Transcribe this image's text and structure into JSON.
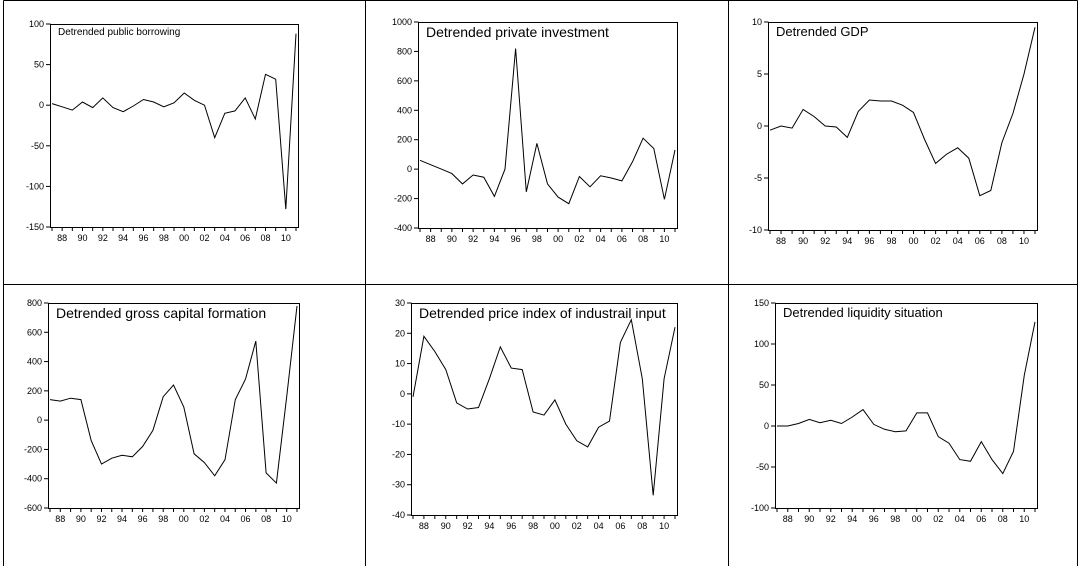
{
  "chart_data": [
    {
      "type": "line",
      "title": "Detrended public borrowing",
      "categories": [
        null,
        "88",
        null,
        "90",
        null,
        "92",
        null,
        "94",
        null,
        "96",
        null,
        "98",
        null,
        "00",
        null,
        "02",
        null,
        "04",
        null,
        "06",
        null,
        "08",
        null,
        "10",
        null
      ],
      "values": [
        2,
        -2,
        -6,
        4,
        -3,
        9,
        -3,
        -8,
        -1,
        7,
        4,
        -2,
        3,
        15,
        6,
        0,
        -40,
        -10,
        -7,
        9,
        -17,
        38,
        32,
        -128,
        88
      ],
      "color": "#000000",
      "ylim": [
        -150,
        100
      ],
      "yticks": [
        -150,
        -100,
        -50,
        0,
        50,
        100
      ]
    },
    {
      "type": "line",
      "title": "Detrended private investment",
      "categories": [
        null,
        "88",
        null,
        "90",
        null,
        "92",
        null,
        "94",
        null,
        "96",
        null,
        "98",
        null,
        "00",
        null,
        "02",
        null,
        "04",
        null,
        "06",
        null,
        "08",
        null,
        "10",
        null
      ],
      "values": [
        60,
        30,
        0,
        -30,
        -100,
        -40,
        -55,
        -185,
        0,
        820,
        -155,
        175,
        -100,
        -190,
        -235,
        -50,
        -120,
        -45,
        -60,
        -80,
        50,
        210,
        140,
        -205,
        130
      ],
      "color": "#000000",
      "ylim": [
        -400,
        1000
      ],
      "yticks": [
        -400,
        -200,
        0,
        200,
        400,
        600,
        800,
        1000
      ]
    },
    {
      "type": "line",
      "title": "Detrended GDP",
      "categories": [
        null,
        "88",
        null,
        "90",
        null,
        "92",
        null,
        "94",
        null,
        "96",
        null,
        "98",
        null,
        "00",
        null,
        "02",
        null,
        "04",
        null,
        "06",
        null,
        "08",
        null,
        "10",
        null
      ],
      "values": [
        -0.4,
        0,
        -0.2,
        1.6,
        0.9,
        0,
        -0.1,
        -1.1,
        1.4,
        2.5,
        2.4,
        2.4,
        2.0,
        1.3,
        -1.3,
        -3.6,
        -2.7,
        -2.1,
        -3.1,
        -6.7,
        -6.2,
        -1.6,
        1.2,
        5.0,
        9.5
      ],
      "color": "#000000",
      "ylim": [
        -10,
        10
      ],
      "yticks": [
        -10,
        -5,
        0,
        5,
        10
      ]
    },
    {
      "type": "line",
      "title": "Detrended gross capital formation",
      "categories": [
        null,
        "88",
        null,
        "90",
        null,
        "92",
        null,
        "94",
        null,
        "96",
        null,
        "98",
        null,
        "00",
        null,
        "02",
        null,
        "04",
        null,
        "06",
        null,
        "08",
        null,
        "10",
        null
      ],
      "values": [
        140,
        130,
        150,
        140,
        -140,
        -300,
        -260,
        -240,
        -250,
        -180,
        -70,
        160,
        240,
        90,
        -230,
        -290,
        -380,
        -270,
        140,
        280,
        540,
        -360,
        -430,
        160,
        780
      ],
      "color": "#000000",
      "ylim": [
        -600,
        800
      ],
      "yticks": [
        -600,
        -400,
        -200,
        0,
        200,
        400,
        600,
        800
      ]
    },
    {
      "type": "line",
      "title": "Detrended price index of industrail input",
      "categories": [
        null,
        "88",
        null,
        "90",
        null,
        "92",
        null,
        "94",
        null,
        "96",
        null,
        "98",
        null,
        "00",
        null,
        "02",
        null,
        "04",
        null,
        "06",
        null,
        "08",
        null,
        "10",
        null
      ],
      "values": [
        -1,
        19,
        14,
        8,
        -3,
        -5,
        -4.5,
        5,
        15.5,
        8.5,
        8,
        -6,
        -7,
        -2,
        -10,
        -15.5,
        -17.5,
        -11,
        -9,
        17,
        24.5,
        5,
        -33.5,
        5,
        22
      ],
      "color": "#000000",
      "ylim": [
        -40,
        30
      ],
      "yticks": [
        -40,
        -30,
        -20,
        -10,
        0,
        10,
        20,
        30
      ]
    },
    {
      "type": "line",
      "title": "Detrended liquidity situation",
      "categories": [
        null,
        "88",
        null,
        "90",
        null,
        "92",
        null,
        "94",
        null,
        "96",
        null,
        "98",
        null,
        "00",
        null,
        "02",
        null,
        "04",
        null,
        "06",
        null,
        "08",
        null,
        "10",
        null
      ],
      "values": [
        0,
        0,
        3,
        8,
        4,
        7,
        3,
        11,
        20,
        2,
        -4,
        -7,
        -6,
        16,
        16,
        -13,
        -21,
        -41,
        -43,
        -19,
        -41,
        -58,
        -31,
        62,
        127
      ],
      "color": "#000000",
      "ylim": [
        -100,
        150
      ],
      "yticks": [
        -100,
        -50,
        0,
        50,
        100,
        150
      ]
    }
  ]
}
